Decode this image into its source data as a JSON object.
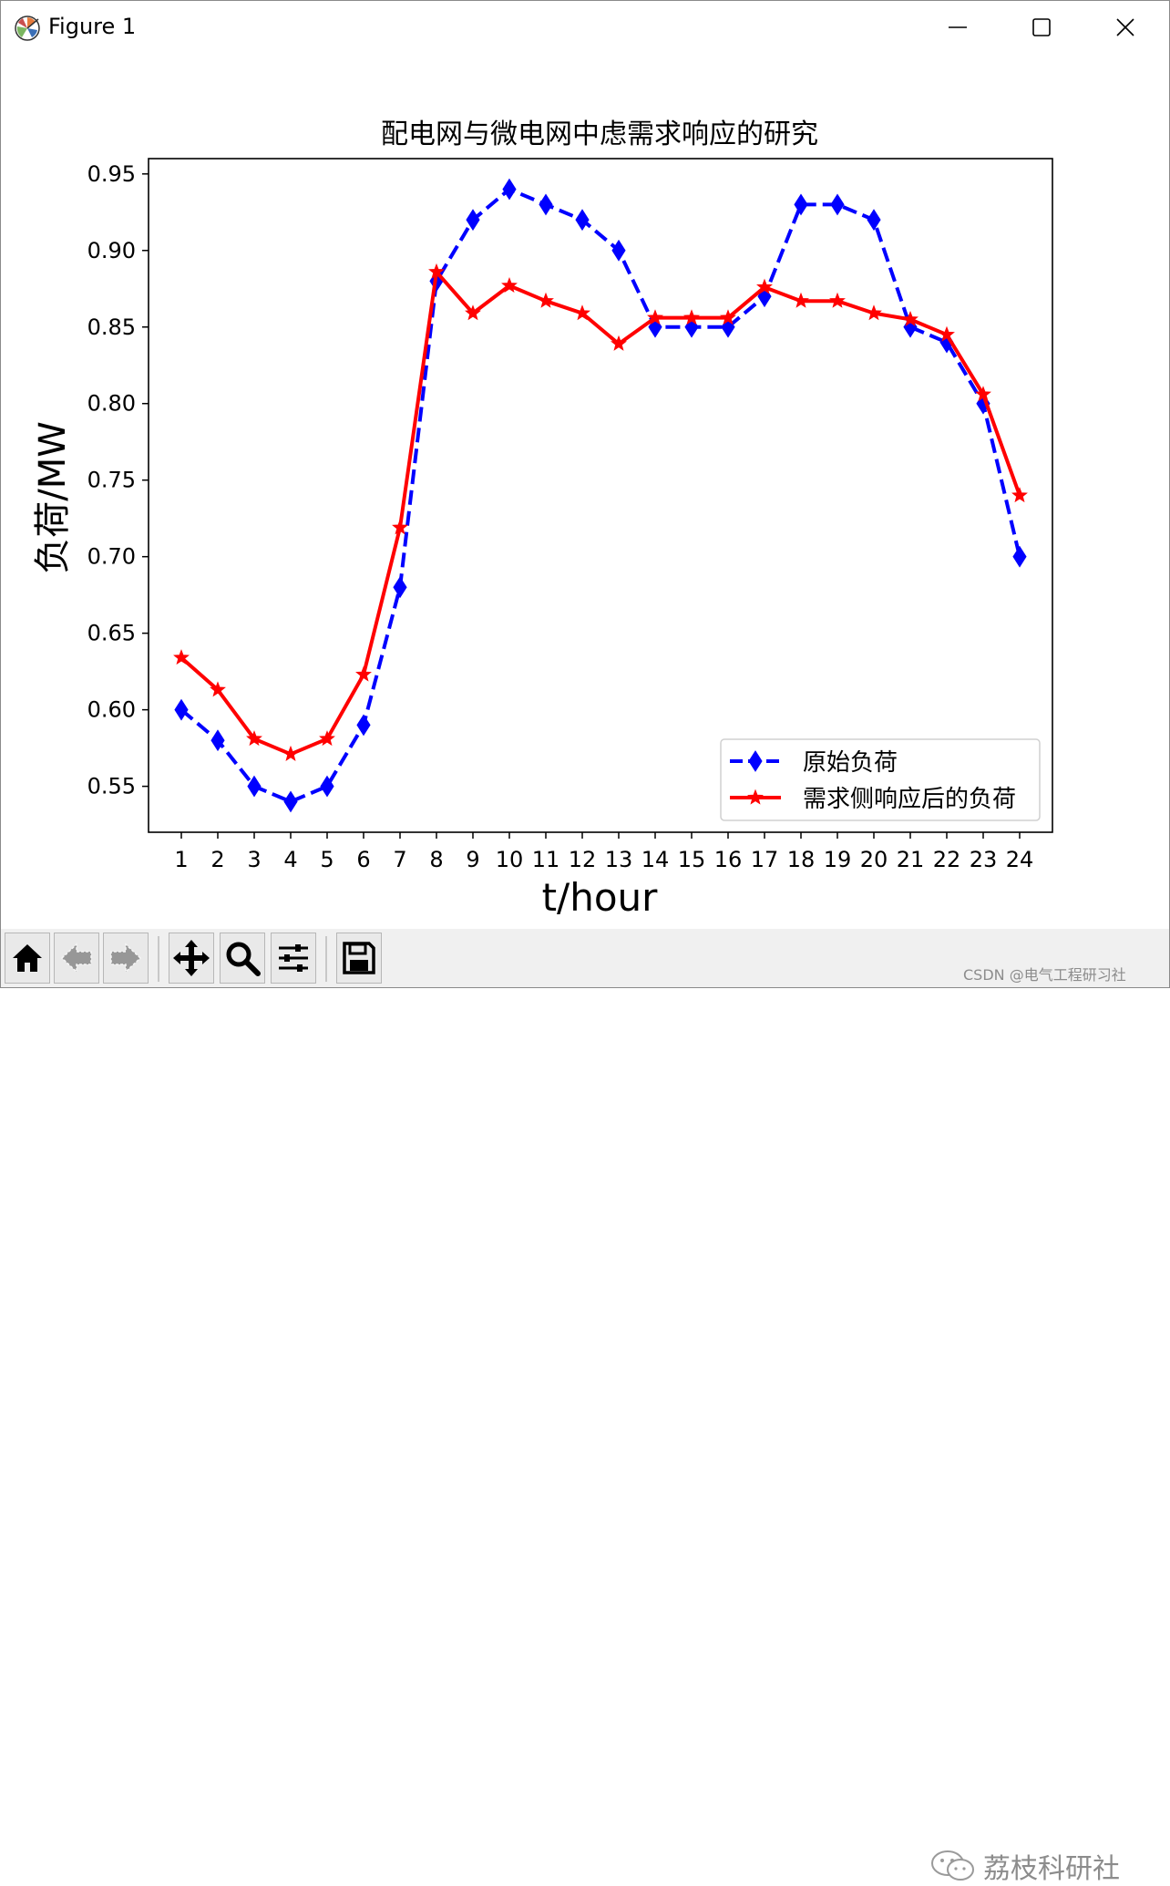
{
  "window": {
    "title": "Figure 1"
  },
  "chart_data": {
    "type": "line",
    "title": "配电网与微电网中虑需求响应的研究",
    "xlabel": "t/hour",
    "ylabel": "负荷/MW",
    "x": [
      1,
      2,
      3,
      4,
      5,
      6,
      7,
      8,
      9,
      10,
      11,
      12,
      13,
      14,
      15,
      16,
      17,
      18,
      19,
      20,
      21,
      22,
      23,
      24
    ],
    "x_ticks": [
      "1",
      "2",
      "3",
      "4",
      "5",
      "6",
      "7",
      "8",
      "9",
      "10",
      "11",
      "12",
      "13",
      "14",
      "15",
      "16",
      "17",
      "18",
      "19",
      "20",
      "21",
      "22",
      "23",
      "24"
    ],
    "y_ticks": [
      "0.55",
      "0.60",
      "0.65",
      "0.70",
      "0.75",
      "0.80",
      "0.85",
      "0.90",
      "0.95"
    ],
    "xlim": [
      0.1,
      24.9
    ],
    "ylim": [
      0.52,
      0.96
    ],
    "grid": false,
    "legend_position": "lower right",
    "series": [
      {
        "name": "原始负荷",
        "color": "#0000ff",
        "linestyle": "dashed",
        "marker": "thin-diamond",
        "values": [
          0.6,
          0.58,
          0.55,
          0.54,
          0.55,
          0.59,
          0.68,
          0.88,
          0.92,
          0.94,
          0.93,
          0.92,
          0.9,
          0.85,
          0.85,
          0.85,
          0.87,
          0.93,
          0.93,
          0.92,
          0.85,
          0.84,
          0.8,
          0.7
        ]
      },
      {
        "name": "需求侧响应后的负荷",
        "color": "#ff0000",
        "linestyle": "solid",
        "marker": "star",
        "values": [
          0.634,
          0.613,
          0.581,
          0.571,
          0.581,
          0.623,
          0.719,
          0.886,
          0.859,
          0.877,
          0.867,
          0.859,
          0.839,
          0.856,
          0.856,
          0.856,
          0.876,
          0.867,
          0.867,
          0.859,
          0.855,
          0.845,
          0.806,
          0.74
        ]
      }
    ]
  },
  "toolbar": {
    "buttons": [
      {
        "icon": "home-icon"
      },
      {
        "icon": "back-arrow-icon"
      },
      {
        "icon": "forward-arrow-icon"
      },
      {
        "icon": "pan-move-icon"
      },
      {
        "icon": "zoom-magnifier-icon"
      },
      {
        "icon": "configure-subplots-icon"
      },
      {
        "icon": "save-floppy-icon"
      }
    ]
  },
  "watermark": {
    "text": "荔枝科研社",
    "credit": "CSDN @电气工程研习社"
  }
}
